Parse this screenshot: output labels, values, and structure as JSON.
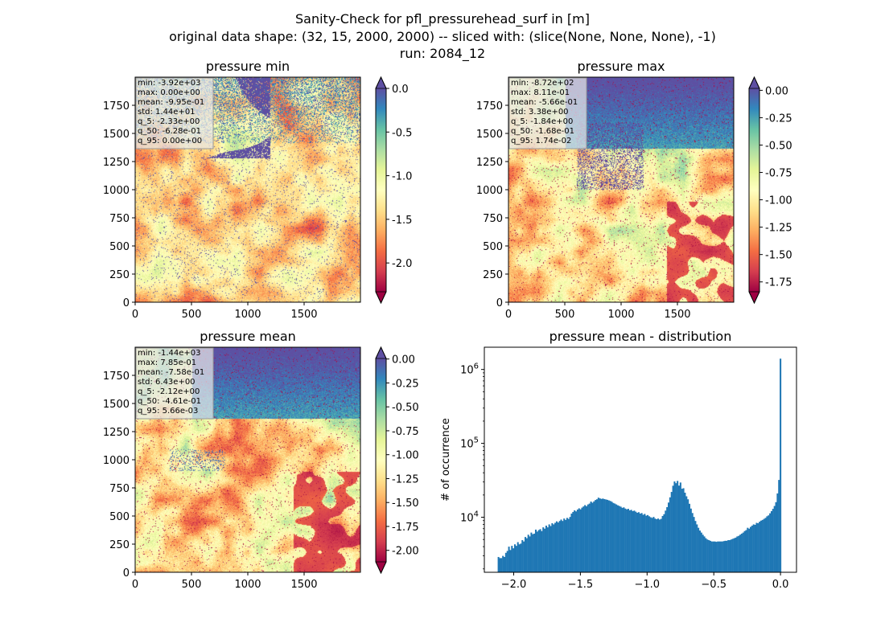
{
  "figure": {
    "title_lines": [
      "Sanity-Check for pfl_pressurehead_surf in [m]",
      "original data shape: (32, 15, 2000, 2000) -- sliced with: (slice(None, None, None), -1)",
      "run: 2084_12"
    ]
  },
  "colormap": {
    "name": "Spectral",
    "stops": [
      "#9e0142",
      "#d53e4f",
      "#f46d43",
      "#fdae61",
      "#fee08b",
      "#ffffbf",
      "#e6f598",
      "#abdda4",
      "#66c2a5",
      "#3288bd",
      "#5e4fa2"
    ]
  },
  "chart_data": [
    {
      "type": "heatmap",
      "title": "pressure min",
      "xlim": [
        0,
        2000
      ],
      "ylim": [
        0,
        2000
      ],
      "xticks": [
        "0",
        "500",
        "1000",
        "1500"
      ],
      "yticks": [
        "0",
        "250",
        "500",
        "750",
        "1000",
        "1250",
        "1500",
        "1750"
      ],
      "colorbar": {
        "range": [
          -2.33,
          0.0
        ],
        "ticks": [
          "0.0",
          "-0.5",
          "-1.0",
          "-1.5",
          "-2.0"
        ],
        "tick_values": [
          0.0,
          -0.5,
          -1.0,
          -1.5,
          -2.0
        ],
        "extend": "both",
        "upper_extend_color": "#5e4fa2",
        "lower_extend_color": "#9e0142"
      },
      "stats": [
        "min: -3.92e+03",
        "max: 0.00e+00",
        "mean: -9.95e-01",
        "std: 1.44e+01",
        "q_5: -2.33e+00",
        "q_50: -6.28e-01",
        "q_95: 0.00e+00"
      ]
    },
    {
      "type": "heatmap",
      "title": "pressure max",
      "xlim": [
        0,
        2000
      ],
      "ylim": [
        0,
        2000
      ],
      "xticks": [
        "0",
        "500",
        "1000",
        "1500"
      ],
      "yticks": [
        "0",
        "250",
        "500",
        "750",
        "1000",
        "1250",
        "1500",
        "1750"
      ],
      "colorbar": {
        "range": [
          -1.84,
          0.0174
        ],
        "ticks": [
          "0.00",
          "-0.25",
          "-0.50",
          "-0.75",
          "-1.00",
          "-1.25",
          "-1.50",
          "-1.75"
        ],
        "tick_values": [
          0.0,
          -0.25,
          -0.5,
          -0.75,
          -1.0,
          -1.25,
          -1.5,
          -1.75
        ],
        "extend": "both",
        "upper_extend_color": "#5e4fa2",
        "lower_extend_color": "#9e0142"
      },
      "stats": [
        "min: -8.72e+02",
        "max: 8.11e-01",
        "mean: -5.66e-01",
        "std: 3.38e+00",
        "q_5: -1.84e+00",
        "q_50: -1.68e-01",
        "q_95: 1.74e-02"
      ]
    },
    {
      "type": "heatmap",
      "title": "pressure mean",
      "xlim": [
        0,
        2000
      ],
      "ylim": [
        0,
        2000
      ],
      "xticks": [
        "0",
        "500",
        "1000",
        "1500"
      ],
      "yticks": [
        "0",
        "250",
        "500",
        "750",
        "1000",
        "1250",
        "1500",
        "1750"
      ],
      "colorbar": {
        "range": [
          -2.12,
          0.00566
        ],
        "ticks": [
          "0.00",
          "-0.25",
          "-0.50",
          "-0.75",
          "-1.00",
          "-1.25",
          "-1.50",
          "-1.75",
          "-2.00"
        ],
        "tick_values": [
          0.0,
          -0.25,
          -0.5,
          -0.75,
          -1.0,
          -1.25,
          -1.5,
          -1.75,
          -2.0
        ],
        "extend": "both",
        "upper_extend_color": "#5e4fa2",
        "lower_extend_color": "#9e0142"
      },
      "stats": [
        "min: -1.44e+03",
        "max: 7.85e-01",
        "mean: -7.58e-01",
        "std: 6.43e+00",
        "q_5: -2.12e+00",
        "q_50: -4.61e-01",
        "q_95: 5.66e-03"
      ]
    },
    {
      "type": "bar",
      "title": "pressure mean - distribution",
      "ylabel": "# of occurrence",
      "xlabel": "",
      "xlim": [
        -2.22,
        0.12
      ],
      "yscale": "log",
      "ylim": [
        1800,
        2000000
      ],
      "xticks": [
        -2.0,
        -1.5,
        -1.0,
        -0.5,
        0.0
      ],
      "xtick_labels": [
        "−2.0",
        "−1.5",
        "−1.0",
        "−0.5",
        "0.0"
      ],
      "yticks": [
        10000,
        100000,
        1000000
      ],
      "ytick_labels": [
        "10^4",
        "10^5",
        "10^6"
      ],
      "color": "#1f77b4",
      "bin_range": [
        -2.12,
        0.005
      ],
      "counts": [
        2900,
        2800,
        2800,
        3000,
        2900,
        3300,
        3500,
        4000,
        3600,
        4100,
        3800,
        4300,
        4100,
        4600,
        4300,
        4400,
        4900,
        4700,
        5400,
        5200,
        5800,
        5500,
        6200,
        5900,
        6000,
        6800,
        6400,
        6700,
        6900,
        6500,
        7300,
        7000,
        7700,
        7300,
        8000,
        7600,
        8300,
        8000,
        8400,
        8800,
        8500,
        8900,
        9300,
        8900,
        9600,
        9200,
        9800,
        9500,
        10100,
        11200,
        11800,
        12400,
        12000,
        12700,
        13200,
        12800,
        13500,
        14000,
        14600,
        14100,
        14900,
        15300,
        16300,
        15700,
        16400,
        17100,
        17500,
        18400,
        18000,
        17700,
        17900,
        17600,
        17400,
        17200,
        16900,
        16600,
        16200,
        15600,
        15300,
        14900,
        14500,
        14200,
        13900,
        13400,
        13600,
        13100,
        12800,
        13000,
        12400,
        12600,
        12100,
        12300,
        11900,
        11500,
        11700,
        11200,
        11400,
        10800,
        11100,
        10500,
        10700,
        10300,
        10000,
        9800,
        10100,
        9600,
        9400,
        9600,
        9300,
        9500,
        10400,
        11000,
        12300,
        13700,
        15800,
        18600,
        22000,
        26700,
        30500,
        28900,
        31000,
        26800,
        29500,
        24300,
        24700,
        21500,
        19200,
        17500,
        15200,
        13100,
        11400,
        10100,
        8900,
        8000,
        7200,
        6600,
        6200,
        5800,
        5500,
        5200,
        5000,
        4900,
        4800,
        4700,
        4700,
        4700,
        4650,
        4700,
        4700,
        4700,
        4700,
        4750,
        4800,
        4800,
        4900,
        4900,
        5000,
        5100,
        5200,
        5300,
        5500,
        5600,
        5800,
        6000,
        6200,
        6500,
        6700,
        7200,
        7000,
        7400,
        7700,
        8000,
        7900,
        8400,
        8300,
        8700,
        9000,
        9200,
        9500,
        9800,
        10300,
        10600,
        11300,
        12100,
        13000,
        14200,
        16000,
        21000,
        32000,
        1400000
      ]
    }
  ]
}
